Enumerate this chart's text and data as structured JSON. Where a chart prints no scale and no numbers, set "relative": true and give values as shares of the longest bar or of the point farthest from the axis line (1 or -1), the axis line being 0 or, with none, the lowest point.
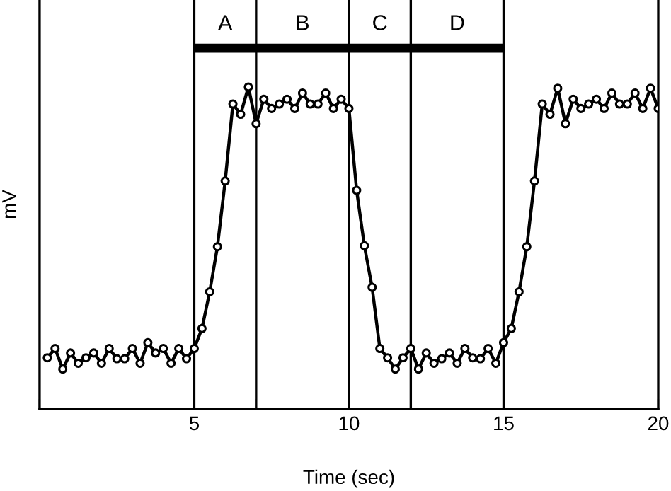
{
  "chart_data": {
    "type": "line",
    "relative": true,
    "xlabel": "Time (sec)",
    "ylabel": "mV",
    "x": [
      0.25,
      0.5,
      0.75,
      1,
      1.25,
      1.5,
      1.75,
      2,
      2.25,
      2.5,
      2.75,
      3,
      3.25,
      3.5,
      3.75,
      4,
      4.25,
      4.5,
      4.75,
      5,
      5.25,
      5.5,
      5.75,
      6,
      6.25,
      6.5,
      6.75,
      7,
      7.25,
      7.5,
      7.75,
      8,
      8.25,
      8.5,
      8.75,
      9,
      9.25,
      9.5,
      9.75,
      10,
      10.25,
      10.5,
      10.75,
      11,
      11.25,
      11.5,
      11.75,
      12,
      12.25,
      12.5,
      12.75,
      13,
      13.25,
      13.5,
      13.75,
      14,
      14.25,
      14.5,
      14.75,
      15,
      15.25,
      15.5,
      15.75,
      16,
      16.25,
      16.5,
      16.75,
      17,
      17.25,
      17.5,
      17.75,
      18,
      18.25,
      18.5,
      18.75,
      19,
      19.25,
      19.5,
      19.75,
      20
    ],
    "series": [
      {
        "color": "#000000",
        "values": [
          0.159,
          0.188,
          0.124,
          0.174,
          0.142,
          0.159,
          0.174,
          0.142,
          0.188,
          0.156,
          0.156,
          0.188,
          0.142,
          0.206,
          0.174,
          0.188,
          0.142,
          0.188,
          0.156,
          0.188,
          0.25,
          0.364,
          0.504,
          0.708,
          0.947,
          0.915,
          1.0,
          0.886,
          0.962,
          0.933,
          0.947,
          0.962,
          0.933,
          0.981,
          0.947,
          0.947,
          0.981,
          0.933,
          0.962,
          0.933,
          0.679,
          0.507,
          0.378,
          0.188,
          0.159,
          0.124,
          0.159,
          0.188,
          0.124,
          0.174,
          0.142,
          0.156,
          0.174,
          0.142,
          0.188,
          0.159,
          0.156,
          0.188,
          0.142,
          0.206,
          0.25,
          0.364,
          0.504,
          0.708,
          0.947,
          0.915,
          0.996,
          0.886,
          0.962,
          0.933,
          0.947,
          0.962,
          0.933,
          0.981,
          0.947,
          0.947,
          0.981,
          0.933,
          0.996,
          0.933
        ]
      }
    ],
    "marker": "circle",
    "line_style": "solid",
    "xlim": [
      0,
      20
    ],
    "xticks": [
      {
        "value": 0,
        "label": null
      },
      5,
      {
        "value": 7,
        "label": null
      },
      10,
      {
        "value": 12,
        "label": null
      },
      15,
      20
    ],
    "tick_labels": "x",
    "ref_lines": [
      {
        "axis": "x",
        "value": 5,
        "color": "#000000"
      },
      {
        "axis": "x",
        "value": 7,
        "color": "#000000"
      },
      {
        "axis": "x",
        "value": 10,
        "color": "#000000"
      },
      {
        "axis": "x",
        "value": 12,
        "color": "#000000"
      },
      {
        "axis": "x",
        "value": 15,
        "color": "#000000"
      }
    ],
    "annotations": [
      "A",
      "B",
      "C",
      "D"
    ]
  }
}
